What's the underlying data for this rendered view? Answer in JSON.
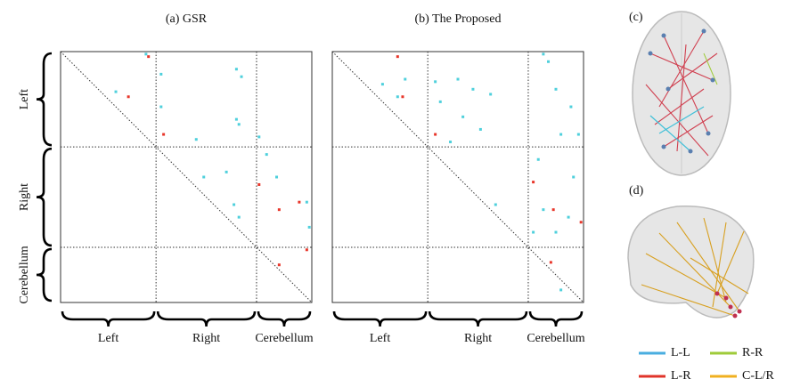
{
  "panels": [
    {
      "title": "(a) GSR",
      "rows": [
        "Left",
        "Right",
        "Cerebellum"
      ],
      "cols": [
        "Left",
        "Right",
        "Cerebellum"
      ],
      "divisions": [
        38,
        78
      ],
      "points": [
        {
          "color": "#4fd0dc",
          "xy": [
            [
              22,
              16
            ],
            [
              40,
              9
            ],
            [
              40,
              22
            ],
            [
              70,
              7
            ],
            [
              72,
              10
            ],
            [
              70,
              27
            ],
            [
              71,
              29
            ],
            [
              79,
              34
            ],
            [
              54,
              35
            ],
            [
              57,
              50
            ],
            [
              66,
              48
            ],
            [
              69,
              61
            ],
            [
              71,
              66
            ],
            [
              82,
              41
            ],
            [
              86,
              50
            ],
            [
              98,
              60
            ],
            [
              99,
              70
            ],
            [
              34,
              1
            ]
          ]
        },
        {
          "color": "#e8362a",
          "xy": [
            [
              35,
              2
            ],
            [
              27,
              18
            ],
            [
              41,
              33
            ],
            [
              79,
              53
            ],
            [
              87,
              63
            ],
            [
              95,
              60
            ],
            [
              98,
              79
            ],
            [
              87,
              85
            ]
          ]
        }
      ]
    },
    {
      "title": "(b) The Proposed",
      "cols": [
        "Left",
        "Right",
        "Cerebellum"
      ],
      "divisions": [
        38,
        78
      ],
      "points": [
        {
          "color": "#4fd0dc",
          "xy": [
            [
              20,
              13
            ],
            [
              26,
              18
            ],
            [
              29,
              11
            ],
            [
              41,
              12
            ],
            [
              50,
              11
            ],
            [
              56,
              15
            ],
            [
              63,
              17
            ],
            [
              52,
              26
            ],
            [
              43,
              20
            ],
            [
              59,
              31
            ],
            [
              47,
              36
            ],
            [
              84,
              1
            ],
            [
              86,
              4
            ],
            [
              89,
              15
            ],
            [
              95,
              22
            ],
            [
              98,
              33
            ],
            [
              91,
              33
            ],
            [
              82,
              43
            ],
            [
              96,
              50
            ],
            [
              84,
              63
            ],
            [
              80,
              72
            ],
            [
              89,
              72
            ],
            [
              94,
              66
            ],
            [
              91,
              95
            ],
            [
              65,
              61
            ]
          ]
        },
        {
          "color": "#e8362a",
          "xy": [
            [
              26,
              2
            ],
            [
              28,
              18
            ],
            [
              41,
              33
            ],
            [
              80,
              52
            ],
            [
              88,
              63
            ],
            [
              87,
              84
            ],
            [
              99,
              68
            ]
          ]
        }
      ]
    }
  ],
  "brain_labels": [
    "(c)",
    "(d)"
  ],
  "legend": [
    {
      "label": "L-L",
      "color": "#4aaee0"
    },
    {
      "label": "R-R",
      "color": "#9fcb3a"
    },
    {
      "label": "L-R",
      "color": "#e0342a"
    },
    {
      "label": "C-L/R",
      "color": "#f0b020"
    }
  ]
}
